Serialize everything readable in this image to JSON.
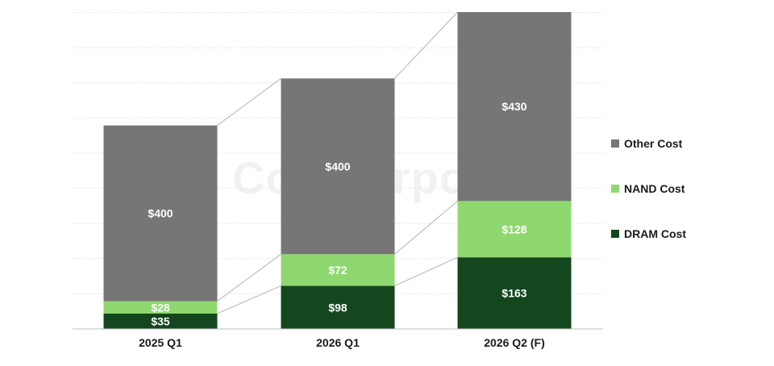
{
  "watermark": "Counterpoint",
  "chart_data": {
    "type": "bar",
    "stacked": true,
    "categories": [
      "2025 Q1",
      "2026 Q1",
      "2026 Q2 (F)"
    ],
    "series": [
      {
        "name": "DRAM Cost",
        "values": [
          35,
          98,
          163
        ],
        "labels": [
          "$35",
          "$98",
          "$163"
        ],
        "color": "#14471e"
      },
      {
        "name": "NAND Cost",
        "values": [
          28,
          72,
          128
        ],
        "labels": [
          "$28",
          "$72",
          "$128"
        ],
        "color": "#8fd870"
      },
      {
        "name": "Other Cost",
        "values": [
          400,
          400,
          430
        ],
        "labels": [
          "$400",
          "$400",
          "$430"
        ],
        "color": "#767676"
      }
    ],
    "ylim": [
      0,
      721
    ],
    "grid": true,
    "legend": "right",
    "connector_lines": true
  },
  "legend_order": [
    "Other Cost",
    "NAND Cost",
    "DRAM Cost"
  ]
}
